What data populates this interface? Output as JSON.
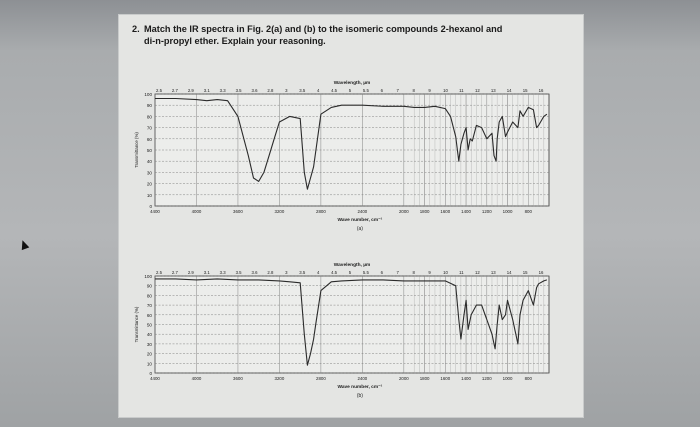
{
  "question": {
    "number": "2.",
    "line1": "Match the IR spectra in Fig. 2(a) and (b) to the isomeric compounds 2-hexanol and",
    "line2": "di-n-propyl ether.  Explain your reasoning."
  },
  "figures": [
    {
      "id": "a",
      "wavelength_title": "Wavelength, µm",
      "wavelength_ticks": [
        "2.5",
        "2.7",
        "2.9",
        "3.1",
        "3.3",
        "3.5",
        "3.6",
        "2.8",
        "3",
        "3.5",
        "4",
        "4.5",
        "5",
        "5.5",
        "6",
        "7",
        "8",
        "9",
        "10",
        "11",
        "12",
        "13",
        "14",
        "15",
        "16"
      ],
      "wavenumber_title": "Wave number, cm⁻¹",
      "wavenumber_ticks": [
        "4400",
        "4000",
        "3600",
        "3200",
        "2800",
        "2400",
        "2000",
        "1800",
        "1600",
        "1400",
        "1200",
        "1000",
        "800"
      ],
      "y_ticks": [
        "100",
        "90",
        "80",
        "70",
        "60",
        "50",
        "40",
        "30",
        "20",
        "10",
        "0"
      ],
      "y_label": "Transmittance (%)",
      "caption": "(a)"
    },
    {
      "id": "b",
      "wavelength_title": "Wavelength, µm",
      "wavelength_ticks": [
        "2.5",
        "2.7",
        "2.9",
        "3.1",
        "3.3",
        "3.5",
        "3.6",
        "2.8",
        "3",
        "3.5",
        "4",
        "4.5",
        "5",
        "5.5",
        "6",
        "7",
        "8",
        "9",
        "10",
        "11",
        "12",
        "13",
        "14",
        "15",
        "16"
      ],
      "wavenumber_title": "Wave number, cm⁻¹",
      "wavenumber_ticks": [
        "4400",
        "4000",
        "3600",
        "3200",
        "2800",
        "2400",
        "2000",
        "1800",
        "1600",
        "1400",
        "1200",
        "1000",
        "800"
      ],
      "y_ticks": [
        "100",
        "90",
        "80",
        "70",
        "60",
        "50",
        "40",
        "30",
        "20",
        "10",
        "0"
      ],
      "y_label": "Transmittance (%)",
      "caption": "(b)"
    }
  ],
  "chart_data": [
    {
      "type": "line",
      "title": "",
      "xlabel": "Wave number, cm⁻¹",
      "ylabel": "Transmittance (%)",
      "xlim": [
        4400,
        600
      ],
      "ylim": [
        0,
        100
      ],
      "series": [
        {
          "x": [
            4400,
            4200,
            4000,
            3900,
            3800,
            3700,
            3600,
            3500,
            3450,
            3400,
            3350,
            3300,
            3250,
            3200,
            3100,
            3000,
            2960,
            2930,
            2900,
            2870,
            2800,
            2700,
            2600,
            2400,
            2200,
            2000,
            1900,
            1800,
            1700,
            1600,
            1550,
            1500,
            1470,
            1450,
            1420,
            1400,
            1380,
            1360,
            1340,
            1300,
            1250,
            1200,
            1150,
            1130,
            1110,
            1100,
            1080,
            1050,
            1020,
            1000,
            950,
            900,
            880,
            850,
            800,
            750,
            720,
            700,
            650,
            620
          ],
          "y": [
            96,
            96,
            95,
            94,
            95,
            94,
            80,
            45,
            25,
            22,
            30,
            45,
            60,
            75,
            80,
            78,
            30,
            15,
            25,
            35,
            82,
            88,
            90,
            90,
            89,
            89,
            88,
            88,
            89,
            87,
            80,
            62,
            40,
            55,
            65,
            70,
            50,
            60,
            58,
            72,
            70,
            60,
            65,
            45,
            40,
            60,
            75,
            80,
            62,
            66,
            75,
            70,
            85,
            80,
            88,
            86,
            70,
            72,
            80,
            82
          ]
        }
      ]
    },
    {
      "type": "line",
      "title": "",
      "xlabel": "Wave number, cm⁻¹",
      "ylabel": "Transmittance (%)",
      "xlim": [
        4400,
        600
      ],
      "ylim": [
        0,
        100
      ],
      "series": [
        {
          "x": [
            4400,
            4200,
            4000,
            3800,
            3600,
            3400,
            3200,
            3100,
            3000,
            2960,
            2930,
            2900,
            2870,
            2850,
            2800,
            2700,
            2600,
            2400,
            2200,
            2000,
            1800,
            1600,
            1500,
            1470,
            1450,
            1420,
            1400,
            1380,
            1350,
            1300,
            1250,
            1200,
            1150,
            1130,
            1120,
            1100,
            1080,
            1050,
            1020,
            1000,
            950,
            900,
            880,
            850,
            800,
            750,
            720,
            700,
            650,
            620
          ],
          "y": [
            97,
            97,
            96,
            97,
            96,
            96,
            95,
            94,
            93,
            40,
            8,
            20,
            35,
            50,
            85,
            94,
            95,
            96,
            96,
            95,
            95,
            95,
            90,
            55,
            35,
            60,
            75,
            45,
            60,
            70,
            70,
            55,
            40,
            30,
            25,
            50,
            70,
            55,
            60,
            75,
            55,
            30,
            60,
            75,
            85,
            70,
            88,
            92,
            95,
            96
          ]
        }
      ]
    }
  ]
}
